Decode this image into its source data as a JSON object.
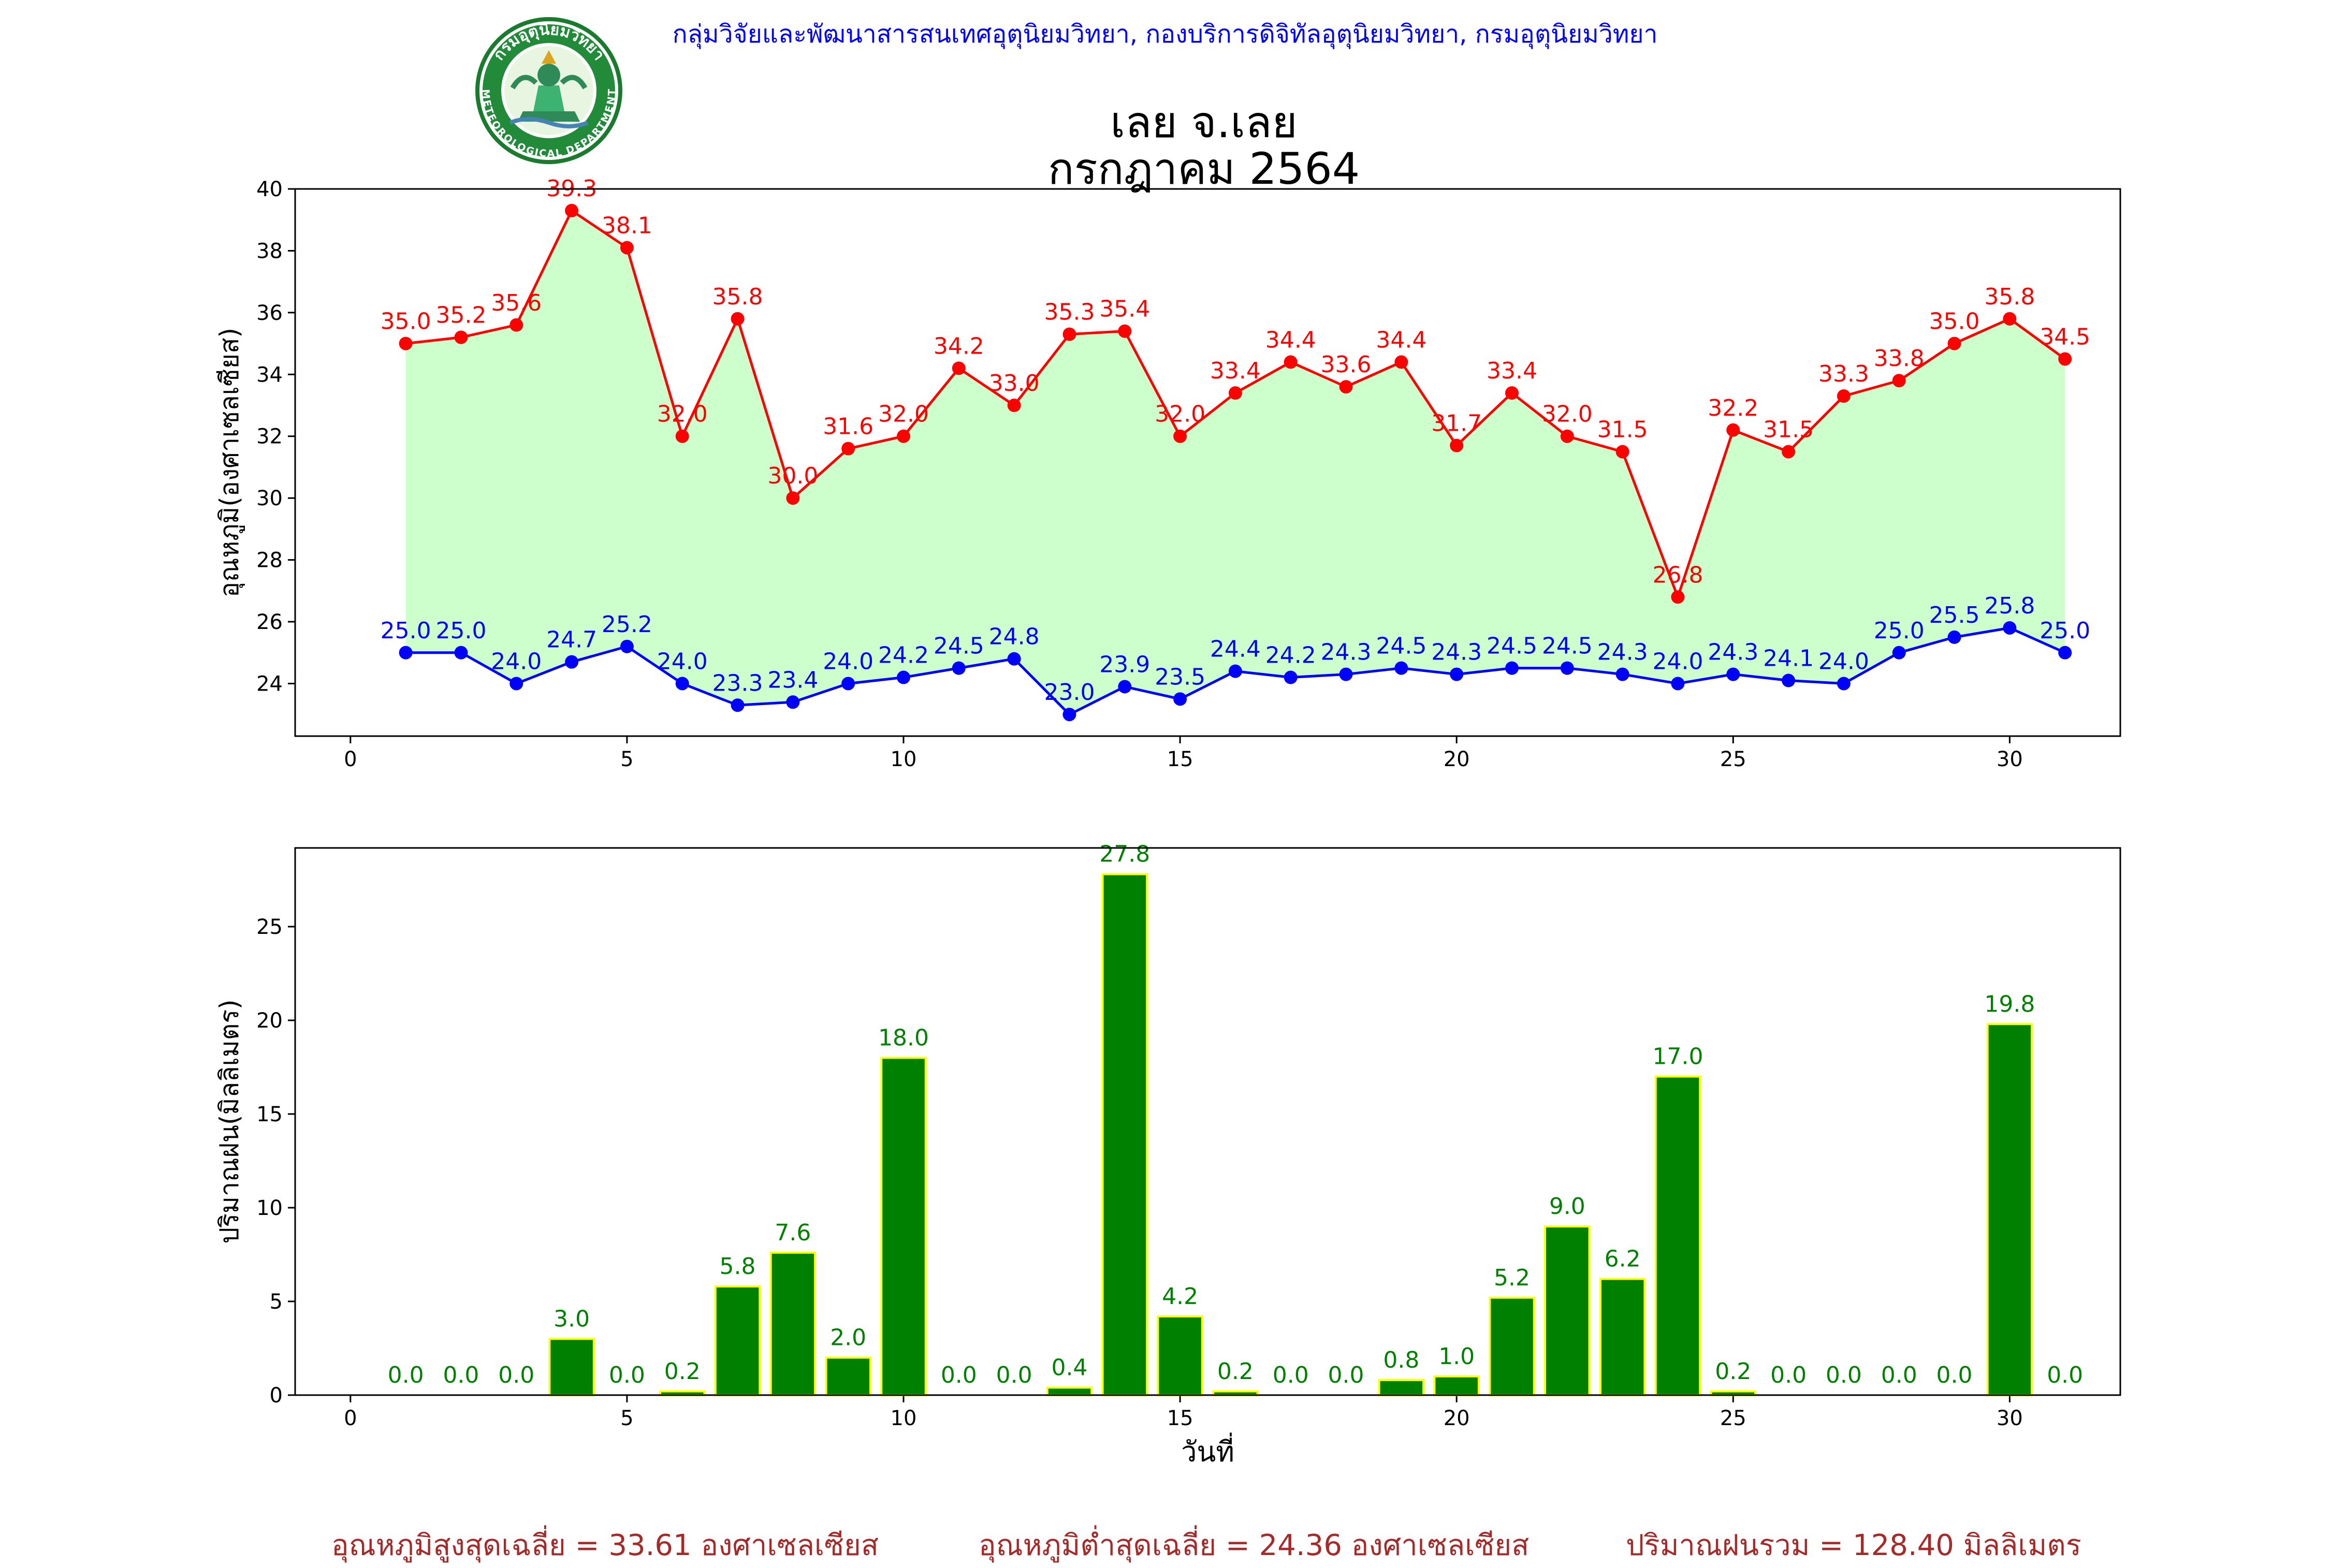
{
  "header": {
    "agency": "กลุ่มวิจัยและพัฒนาสารสนเทศอุตุนิยมวิทยา, กองบริการดิจิทัลอุตุนิยมวิทยา, กรมอุตุนิยมวิทยา",
    "logo_text_top": "กรมอุตุนิยมวิทยา",
    "logo_text_bottom": "METEOROLOGICAL DEPARTMENT",
    "title": "เลย จ.เลย",
    "subtitle": "กรกฎาคม 2564"
  },
  "colors": {
    "tmax": "#ff0000",
    "tmin": "#0000ff",
    "fill": "#ccffcc",
    "rain_bar": "#008000",
    "rain_edge": "#ffff00",
    "rain_label": "#008000",
    "footer": "#a52a2a"
  },
  "chart_data": [
    {
      "type": "line",
      "ylabel": "อุณหภูมิ(องศาเซลเซียส)",
      "xlabel": "",
      "xlim": [
        -1,
        32
      ],
      "ylim": [
        22.3,
        40
      ],
      "xticks": [
        0,
        5,
        10,
        15,
        20,
        25,
        30
      ],
      "yticks": [
        24,
        26,
        28,
        30,
        32,
        34,
        36,
        38,
        40
      ],
      "fill_between": true,
      "x": [
        1,
        2,
        3,
        4,
        5,
        6,
        7,
        8,
        9,
        10,
        11,
        12,
        13,
        14,
        15,
        16,
        17,
        18,
        19,
        20,
        21,
        22,
        23,
        24,
        25,
        26,
        27,
        28,
        29,
        30,
        31
      ],
      "series": [
        {
          "name": "tmax",
          "values": [
            35.0,
            35.2,
            35.6,
            39.3,
            38.1,
            32.0,
            35.8,
            30.0,
            31.6,
            32.0,
            34.2,
            33.0,
            35.3,
            35.4,
            32.0,
            33.4,
            34.4,
            33.6,
            34.4,
            31.7,
            33.4,
            32.0,
            31.5,
            26.8,
            32.2,
            31.5,
            33.3,
            33.8,
            35.0,
            35.8,
            34.5
          ]
        },
        {
          "name": "tmin",
          "values": [
            25.0,
            25.0,
            24.0,
            24.7,
            25.2,
            24.0,
            23.3,
            23.4,
            24.0,
            24.2,
            24.5,
            24.8,
            23.0,
            23.9,
            23.5,
            24.4,
            24.2,
            24.3,
            24.5,
            24.3,
            24.5,
            24.5,
            24.3,
            24.0,
            24.3,
            24.1,
            24.0,
            25.0,
            25.5,
            25.8,
            25.0
          ]
        }
      ]
    },
    {
      "type": "bar",
      "ylabel": "ปริมาณฝน(มิลลิเมตร)",
      "xlabel": "วันที่",
      "xlim": [
        -1,
        32
      ],
      "ylim": [
        0,
        29.2
      ],
      "xticks": [
        0,
        5,
        10,
        15,
        20,
        25,
        30
      ],
      "yticks": [
        0,
        5,
        10,
        15,
        20,
        25
      ],
      "categories": [
        1,
        2,
        3,
        4,
        5,
        6,
        7,
        8,
        9,
        10,
        11,
        12,
        13,
        14,
        15,
        16,
        17,
        18,
        19,
        20,
        21,
        22,
        23,
        24,
        25,
        26,
        27,
        28,
        29,
        30,
        31
      ],
      "values": [
        0.0,
        0.0,
        0.0,
        3.0,
        0.0,
        0.2,
        5.8,
        7.6,
        2.0,
        18.0,
        0.0,
        0.0,
        0.4,
        27.8,
        4.2,
        0.2,
        0.0,
        0.0,
        0.8,
        1.0,
        5.2,
        9.0,
        6.2,
        17.0,
        0.2,
        0.0,
        0.0,
        0.0,
        0.0,
        19.8,
        0.0
      ]
    }
  ],
  "footer": {
    "tmax_avg": "อุณหภูมิสูงสุดเฉลี่ย = 33.61 องศาเซลเซียส",
    "tmin_avg": "อุณหภูมิต่ำสุดเฉลี่ย = 24.36 องศาเซลเซียส",
    "rain_total": "ปริมาณฝนรวม = 128.40 มิลลิเมตร"
  }
}
